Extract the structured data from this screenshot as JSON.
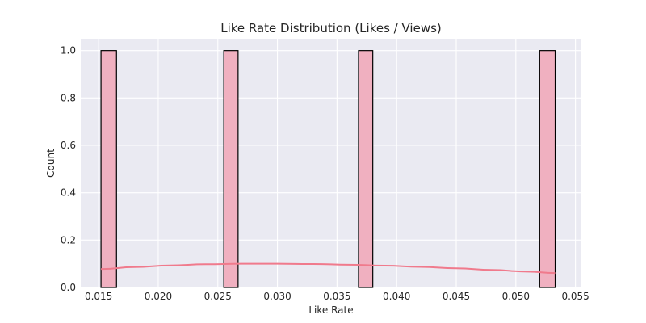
{
  "chart_data": {
    "type": "bar",
    "title": "Like Rate Distribution (Likes / Views)",
    "xlabel": "Like Rate",
    "ylabel": "Count",
    "xlim": [
      0.0135,
      0.0555
    ],
    "ylim": [
      0,
      1.05
    ],
    "xticks": [
      0.015,
      0.02,
      0.025,
      0.03,
      0.035,
      0.04,
      0.045,
      0.05,
      0.055
    ],
    "xtick_labels": [
      "0.015",
      "0.020",
      "0.025",
      "0.030",
      "0.035",
      "0.040",
      "0.045",
      "0.050",
      "0.055"
    ],
    "yticks": [
      0,
      0.2,
      0.4,
      0.6,
      0.8,
      1.0
    ],
    "ytick_labels": [
      "0.0",
      "0.2",
      "0.4",
      "0.6",
      "0.8",
      "1.0"
    ],
    "bins": [
      {
        "x0": 0.0152,
        "x1": 0.0165,
        "count": 1
      },
      {
        "x0": 0.0255,
        "x1": 0.0267,
        "count": 1
      },
      {
        "x0": 0.0368,
        "x1": 0.038,
        "count": 1
      },
      {
        "x0": 0.052,
        "x1": 0.0533,
        "count": 1
      }
    ],
    "kde": {
      "x": [
        0.0152,
        0.018,
        0.021,
        0.024,
        0.027,
        0.03,
        0.033,
        0.036,
        0.039,
        0.042,
        0.045,
        0.048,
        0.051,
        0.0533
      ],
      "y": [
        0.078,
        0.086,
        0.093,
        0.098,
        0.1,
        0.1,
        0.099,
        0.096,
        0.092,
        0.087,
        0.081,
        0.074,
        0.067,
        0.061
      ]
    },
    "grid": true,
    "colors": {
      "background": "#eaeaf2",
      "grid": "#ffffff",
      "bar_fill": "#f0b0c0",
      "bar_edge": "#000000",
      "kde_line": "#f07a8c"
    }
  }
}
